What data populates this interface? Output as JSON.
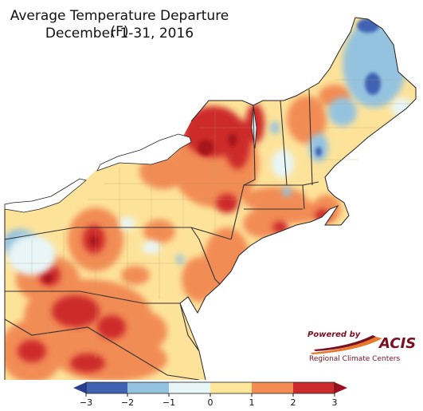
{
  "title": {
    "line1": "Average Temperature Departure (F)",
    "line2": "December 1-31, 2016"
  },
  "logo": {
    "powered_by": "Powered by",
    "name": "ACIS",
    "org": "Regional Climate Centers"
  },
  "legend": {
    "ticks": [
      "−3",
      "−2",
      "−1",
      "0",
      "1",
      "2",
      "3"
    ],
    "colors": [
      "#3f62b3",
      "#94c3df",
      "#e8f6f8",
      "#fde59a",
      "#f28c54",
      "#cd2b2b"
    ],
    "arrow_low_color": "#2a3f94",
    "arrow_high_color": "#9e1020"
  },
  "map": {
    "land_base_color": "#fde39a",
    "lake_color": "#ffffff",
    "ocean_color": "#ffffff"
  }
}
